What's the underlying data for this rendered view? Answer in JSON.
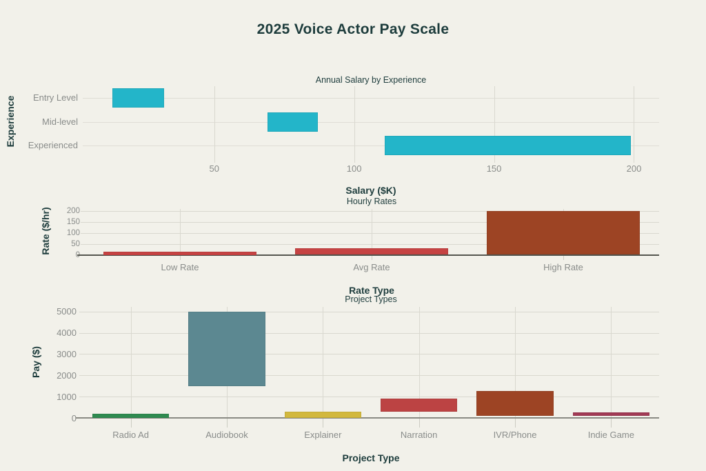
{
  "page": {
    "title": "2025 Voice Actor Pay Scale",
    "background": "#f2f1ea",
    "title_color": "#1d3c3c",
    "tick_color": "#898c8a"
  },
  "chart_data": [
    {
      "type": "bar",
      "orientation": "horizontal",
      "title": "Annual Salary by Experience",
      "xlabel": "Salary ($K)",
      "ylabel": "Experience",
      "categories": [
        "Entry Level",
        "Mid-level",
        "Experienced"
      ],
      "ranges": [
        [
          13.5,
          32
        ],
        [
          69,
          87
        ],
        [
          111,
          199
        ]
      ],
      "xlim": [
        3,
        209
      ],
      "xticks": [
        50,
        100,
        150,
        200
      ],
      "grid": true,
      "bar_colors": [
        "#23b5c9",
        "#23b5c9",
        "#23b5c9"
      ]
    },
    {
      "type": "bar",
      "orientation": "vertical",
      "title": "Hourly Rates",
      "xlabel": "Rate Type",
      "ylabel": "Rate ($/hr)",
      "categories": [
        "Low Rate",
        "Avg Rate",
        "High Rate"
      ],
      "ranges": [
        [
          0,
          13
        ],
        [
          0,
          30
        ],
        [
          0,
          200
        ]
      ],
      "ylim": [
        0,
        208
      ],
      "yticks": [
        0,
        50,
        100,
        150,
        200
      ],
      "grid": true,
      "bar_colors": [
        "#c64343",
        "#c64343",
        "#9d4424"
      ]
    },
    {
      "type": "bar",
      "orientation": "vertical",
      "title": "Project Types",
      "xlabel": "Project Type",
      "ylabel": "Pay ($)",
      "categories": [
        "Radio Ad",
        "Audiobook",
        "Explainer",
        "Narration",
        "IVR/Phone",
        "Indie Game"
      ],
      "ranges": [
        [
          0,
          200
        ],
        [
          1500,
          5000
        ],
        [
          0,
          300
        ],
        [
          300,
          900
        ],
        [
          100,
          1250
        ],
        [
          100,
          250
        ]
      ],
      "ylim": [
        0,
        5220
      ],
      "yticks": [
        0,
        1000,
        2000,
        3000,
        4000,
        5000
      ],
      "grid": true,
      "bar_colors": [
        "#2f8b50",
        "#5c8891",
        "#d2b83d",
        "#bc4343",
        "#9d4424",
        "#a13a54"
      ]
    }
  ]
}
